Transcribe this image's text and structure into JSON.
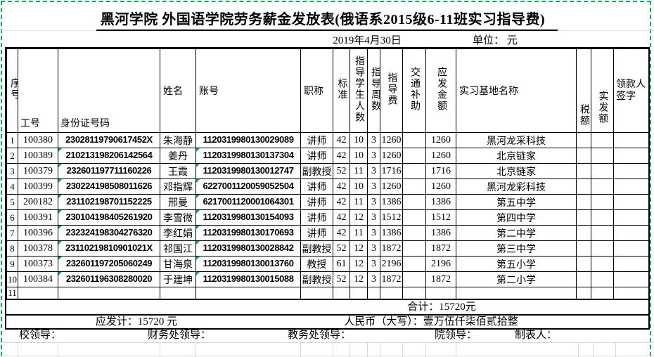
{
  "title": "黑河学院 外国语学院劳务薪金发放表(俄语系2015级6-11班实习指导费)",
  "date": "2019年4月30日",
  "unit_label": "单位：  元",
  "columns": [
    {
      "key": "seq",
      "label": "序号"
    },
    {
      "key": "emp-id",
      "label": "工号"
    },
    {
      "key": "id-card",
      "label": "身份证号码"
    },
    {
      "key": "name",
      "label": "姓名"
    },
    {
      "key": "account",
      "label": "账号"
    },
    {
      "key": "title",
      "label": "职称"
    },
    {
      "key": "standard",
      "label": "标准"
    },
    {
      "key": "students",
      "label": "指导学生人数"
    },
    {
      "key": "weeks",
      "label": "指导周数"
    },
    {
      "key": "fee",
      "label": "指导费"
    },
    {
      "key": "transport",
      "label": "交通补助"
    },
    {
      "key": "payable",
      "label": "应发金额"
    },
    {
      "key": "base",
      "label": "实习基地名称"
    },
    {
      "key": "tax",
      "label": "税额"
    },
    {
      "key": "net",
      "label": "实发额"
    },
    {
      "key": "sign",
      "label": "领款人签字"
    }
  ],
  "rows": [
    {
      "cells": [
        "1",
        "100380",
        "23028119790617452X",
        "朱海静",
        "1120319980130029089",
        "讲师",
        "42",
        "10",
        "3",
        "1260",
        "",
        "1260",
        "黑河龙采科技",
        "",
        "",
        ""
      ],
      "markers": []
    },
    {
      "cells": [
        "2",
        "100389",
        "210213198206142564",
        "姜丹",
        "1120319980130137304",
        "讲师",
        "42",
        "10",
        "3",
        "1260",
        "",
        "1260",
        "北京链家",
        "",
        "",
        ""
      ],
      "markers": [
        2,
        4
      ]
    },
    {
      "cells": [
        "3",
        "100379",
        "232601197711160226",
        "王霞",
        "1120319980130012747",
        "副教授",
        "52",
        "11",
        "3",
        "1716",
        "",
        "1716",
        "北京链家",
        "",
        "",
        ""
      ],
      "markers": [
        2,
        4
      ]
    },
    {
      "cells": [
        "4",
        "100399",
        "230224198508011626",
        "邓指辉",
        "6227001120059052504",
        "讲师",
        "42",
        "10",
        "3",
        "1260",
        "",
        "1260",
        "黑河龙彩科技",
        "",
        "",
        ""
      ],
      "markers": [
        2,
        4
      ]
    },
    {
      "cells": [
        "5",
        "200182",
        "231102198701152225",
        "邢曼",
        "6217001120001064301",
        "讲师",
        "42",
        "11",
        "3",
        "1386",
        "",
        "1386",
        "第五中学",
        "",
        "",
        ""
      ],
      "markers": [
        2,
        4
      ]
    },
    {
      "cells": [
        "6",
        "100391",
        "230104198405261920",
        "李雪微",
        "1120319980130154093",
        "讲师",
        "42",
        "12",
        "3",
        "1512",
        "",
        "1512",
        "第四中学",
        "",
        "",
        ""
      ],
      "markers": [
        2,
        4
      ]
    },
    {
      "cells": [
        "7",
        "100396",
        "232324198304276320",
        "李红娟",
        "1120319980130170693",
        "讲师",
        "42",
        "11",
        "3",
        "1386",
        "",
        "1386",
        "第二中学",
        "",
        "",
        ""
      ],
      "markers": [
        2,
        4
      ]
    },
    {
      "cells": [
        "8",
        "100378",
        "23110219810901021X",
        "祁国江",
        "1120319980130028842",
        "副教授",
        "52",
        "12",
        "3",
        "1872",
        "",
        "1872",
        "第三中学",
        "",
        "",
        ""
      ],
      "markers": [
        2,
        4
      ]
    },
    {
      "cells": [
        "9",
        "100373",
        "232601197205060249",
        "甘海泉",
        "1120319980130013760",
        "教授",
        "61",
        "12",
        "3",
        "2196",
        "",
        "2196",
        "第五小学",
        "",
        "",
        ""
      ],
      "markers": [
        2,
        4
      ]
    },
    {
      "cells": [
        "10",
        "100384",
        "232601196308280020",
        "于建坤",
        "1120319980130015088",
        "副教授",
        "52",
        "12",
        "3",
        "1872",
        "",
        "1872",
        "第二小学",
        "",
        "",
        ""
      ],
      "markers": [
        2,
        4
      ]
    },
    {
      "cells": [
        "11",
        "",
        "",
        "",
        "",
        "",
        "",
        "",
        "",
        "",
        "",
        "",
        "",
        "",
        "",
        ""
      ],
      "markers": []
    }
  ],
  "summary": {
    "total": "合计：15720元",
    "payable_total": "应发计：15720 元",
    "amount_in_words": "人民币（大写）：壹万伍仟柒佰贰拾整"
  },
  "signatures": [
    "校领导：",
    "财务处领导：",
    "教务处领导：",
    "院领导：",
    "制表人："
  ],
  "colors": {
    "print_area_green": "#00A651",
    "comment_marker_green": "#00A651",
    "grid_gray": "#D8D8D8",
    "border_black": "#000000"
  }
}
